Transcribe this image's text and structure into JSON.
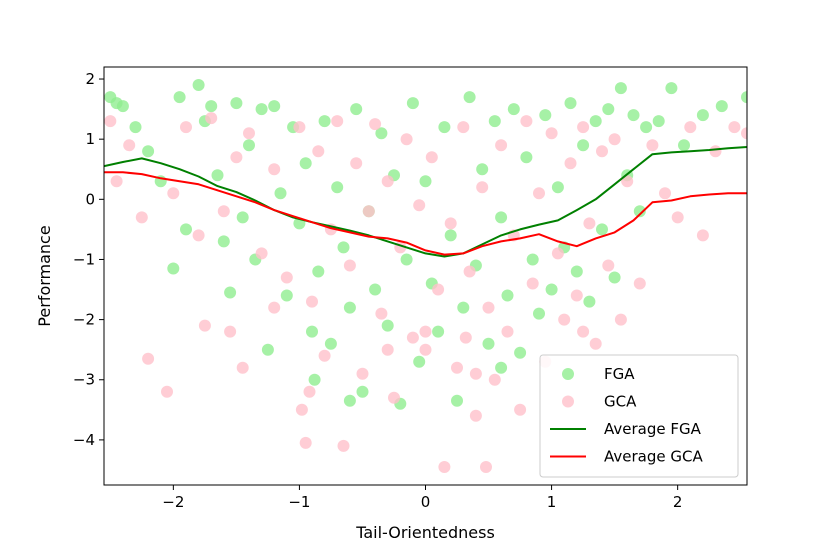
{
  "chart_data": {
    "type": "scatter",
    "title": "",
    "xlabel": "Tail-Orientedness",
    "ylabel": "Performance",
    "xlim": [
      -2.55,
      2.55
    ],
    "ylim": [
      -4.75,
      2.2
    ],
    "xticks": [
      -2,
      -1,
      0,
      1,
      2
    ],
    "yticks": [
      -4,
      -3,
      -2,
      -1,
      0,
      1,
      2
    ],
    "tick_minus": "−",
    "grid": false,
    "legend_position": "lower-right",
    "legend": [
      "FGA",
      "GCA",
      "Average FGA",
      "Average GCA"
    ],
    "colors": {
      "fga": "#90ee90",
      "gca": "#ffc0cb",
      "avg_fga": "#008000",
      "avg_gca": "#ff0000"
    },
    "series": [
      {
        "name": "FGA",
        "kind": "scatter",
        "points": [
          [
            -2.5,
            1.7
          ],
          [
            -2.45,
            1.6
          ],
          [
            -2.4,
            1.55
          ],
          [
            -2.3,
            1.2
          ],
          [
            -2.2,
            0.8
          ],
          [
            -2.1,
            0.3
          ],
          [
            -2.0,
            -1.15
          ],
          [
            -1.95,
            1.7
          ],
          [
            -1.9,
            -0.5
          ],
          [
            -1.8,
            1.9
          ],
          [
            -1.75,
            1.3
          ],
          [
            -1.7,
            1.55
          ],
          [
            -1.65,
            0.4
          ],
          [
            -1.6,
            -0.7
          ],
          [
            -1.55,
            -1.55
          ],
          [
            -1.5,
            1.6
          ],
          [
            -1.45,
            -0.3
          ],
          [
            -1.4,
            0.9
          ],
          [
            -1.35,
            -1.0
          ],
          [
            -1.3,
            1.5
          ],
          [
            -1.25,
            -2.5
          ],
          [
            -1.2,
            1.55
          ],
          [
            -1.15,
            0.1
          ],
          [
            -1.1,
            -1.6
          ],
          [
            -1.05,
            1.2
          ],
          [
            -1.0,
            -0.4
          ],
          [
            -0.95,
            0.6
          ],
          [
            -0.9,
            -2.2
          ],
          [
            -0.88,
            -3.0
          ],
          [
            -0.85,
            -1.2
          ],
          [
            -0.8,
            1.3
          ],
          [
            -0.75,
            -2.4
          ],
          [
            -0.7,
            0.2
          ],
          [
            -0.65,
            -0.8
          ],
          [
            -0.6,
            -1.8
          ],
          [
            -0.55,
            1.5
          ],
          [
            -0.5,
            -3.2
          ],
          [
            -0.45,
            -0.2
          ],
          [
            -0.4,
            -1.5
          ],
          [
            -0.35,
            1.1
          ],
          [
            -0.3,
            -2.1
          ],
          [
            -0.25,
            0.4
          ],
          [
            -0.2,
            -3.4
          ],
          [
            -0.15,
            -1.0
          ],
          [
            -0.1,
            1.6
          ],
          [
            -0.05,
            -2.7
          ],
          [
            0.0,
            0.3
          ],
          [
            0.05,
            -1.4
          ],
          [
            0.1,
            -2.2
          ],
          [
            0.15,
            1.2
          ],
          [
            0.2,
            -0.6
          ],
          [
            0.25,
            -3.35
          ],
          [
            0.3,
            -1.8
          ],
          [
            0.35,
            1.7
          ],
          [
            0.4,
            -1.1
          ],
          [
            0.45,
            0.5
          ],
          [
            0.5,
            -2.4
          ],
          [
            0.55,
            1.3
          ],
          [
            0.6,
            -0.3
          ],
          [
            0.65,
            -1.6
          ],
          [
            0.7,
            1.5
          ],
          [
            0.75,
            -2.55
          ],
          [
            0.8,
            0.7
          ],
          [
            0.85,
            -1.0
          ],
          [
            0.9,
            -1.9
          ],
          [
            0.95,
            1.4
          ],
          [
            1.0,
            -1.5
          ],
          [
            1.05,
            0.2
          ],
          [
            1.1,
            -0.8
          ],
          [
            1.15,
            1.6
          ],
          [
            1.2,
            -1.2
          ],
          [
            1.25,
            0.9
          ],
          [
            1.3,
            -1.7
          ],
          [
            1.35,
            1.3
          ],
          [
            1.4,
            -0.5
          ],
          [
            1.45,
            1.5
          ],
          [
            1.5,
            -1.3
          ],
          [
            1.55,
            1.85
          ],
          [
            1.6,
            0.4
          ],
          [
            1.65,
            1.4
          ],
          [
            1.7,
            -0.2
          ],
          [
            1.75,
            1.2
          ],
          [
            1.85,
            1.3
          ],
          [
            1.95,
            1.85
          ],
          [
            2.05,
            0.9
          ],
          [
            2.2,
            1.4
          ],
          [
            2.35,
            1.55
          ],
          [
            2.55,
            1.7
          ],
          [
            -0.6,
            -3.35
          ],
          [
            0.6,
            -2.8
          ]
        ]
      },
      {
        "name": "GCA",
        "kind": "scatter",
        "points": [
          [
            -2.5,
            1.3
          ],
          [
            -2.45,
            0.3
          ],
          [
            -2.35,
            0.9
          ],
          [
            -2.25,
            -0.3
          ],
          [
            -2.2,
            -2.65
          ],
          [
            -2.05,
            -3.2
          ],
          [
            -2.0,
            0.1
          ],
          [
            -1.9,
            1.2
          ],
          [
            -1.8,
            -0.6
          ],
          [
            -1.75,
            -2.1
          ],
          [
            -1.7,
            1.35
          ],
          [
            -1.6,
            -0.2
          ],
          [
            -1.55,
            -2.2
          ],
          [
            -1.5,
            0.7
          ],
          [
            -1.45,
            -2.8
          ],
          [
            -1.4,
            1.1
          ],
          [
            -1.3,
            -0.9
          ],
          [
            -1.2,
            0.5
          ],
          [
            -1.1,
            -1.3
          ],
          [
            -1.0,
            1.2
          ],
          [
            -0.98,
            -3.5
          ],
          [
            -0.95,
            -4.05
          ],
          [
            -0.9,
            -1.7
          ],
          [
            -0.85,
            0.8
          ],
          [
            -0.8,
            -2.6
          ],
          [
            -0.75,
            -0.5
          ],
          [
            -0.7,
            1.3
          ],
          [
            -0.65,
            -4.1
          ],
          [
            -0.6,
            -1.1
          ],
          [
            -0.55,
            0.6
          ],
          [
            -0.5,
            -2.9
          ],
          [
            -0.45,
            -0.2
          ],
          [
            -0.4,
            1.25
          ],
          [
            -0.35,
            -1.9
          ],
          [
            -0.3,
            0.3
          ],
          [
            -0.25,
            -3.3
          ],
          [
            -0.2,
            -0.8
          ],
          [
            -0.15,
            1.0
          ],
          [
            -0.1,
            -2.3
          ],
          [
            -0.05,
            -0.1
          ],
          [
            0.0,
            -2.5
          ],
          [
            0.05,
            0.7
          ],
          [
            0.1,
            -1.5
          ],
          [
            0.15,
            -4.45
          ],
          [
            0.2,
            -0.4
          ],
          [
            0.25,
            -2.8
          ],
          [
            0.3,
            1.2
          ],
          [
            0.35,
            -1.2
          ],
          [
            0.4,
            -3.6
          ],
          [
            0.45,
            0.2
          ],
          [
            0.48,
            -4.45
          ],
          [
            0.5,
            -1.8
          ],
          [
            0.55,
            -3.0
          ],
          [
            0.6,
            0.9
          ],
          [
            0.65,
            -2.2
          ],
          [
            0.7,
            -0.6
          ],
          [
            0.75,
            -3.5
          ],
          [
            0.8,
            1.3
          ],
          [
            0.85,
            -1.4
          ],
          [
            0.9,
            0.1
          ],
          [
            0.95,
            -2.7
          ],
          [
            1.0,
            1.1
          ],
          [
            1.05,
            -0.9
          ],
          [
            1.1,
            -2.0
          ],
          [
            1.15,
            0.6
          ],
          [
            1.2,
            -1.6
          ],
          [
            1.25,
            1.2
          ],
          [
            1.3,
            -0.4
          ],
          [
            1.35,
            -2.4
          ],
          [
            1.4,
            0.8
          ],
          [
            1.45,
            -1.1
          ],
          [
            1.5,
            1.0
          ],
          [
            1.55,
            -2.0
          ],
          [
            1.6,
            0.3
          ],
          [
            1.7,
            -1.4
          ],
          [
            1.8,
            0.9
          ],
          [
            1.9,
            0.1
          ],
          [
            2.0,
            -0.3
          ],
          [
            2.1,
            1.2
          ],
          [
            2.2,
            -0.6
          ],
          [
            2.3,
            0.8
          ],
          [
            2.45,
            1.2
          ],
          [
            2.55,
            1.1
          ],
          [
            -0.92,
            -3.2
          ],
          [
            0.32,
            -2.3
          ],
          [
            -1.2,
            -1.8
          ],
          [
            1.25,
            -2.2
          ],
          [
            0.0,
            -2.2
          ],
          [
            -0.3,
            -2.5
          ],
          [
            0.4,
            -2.9
          ]
        ]
      },
      {
        "name": "Average FGA",
        "kind": "line",
        "x": [
          -2.55,
          -2.4,
          -2.25,
          -2.1,
          -1.95,
          -1.8,
          -1.65,
          -1.5,
          -1.35,
          -1.2,
          -1.05,
          -0.9,
          -0.75,
          -0.6,
          -0.45,
          -0.3,
          -0.15,
          0.0,
          0.15,
          0.3,
          0.45,
          0.6,
          0.75,
          0.9,
          1.05,
          1.2,
          1.35,
          1.5,
          1.65,
          1.8,
          1.95,
          2.1,
          2.25,
          2.4,
          2.55
        ],
        "y": [
          0.55,
          0.62,
          0.68,
          0.6,
          0.5,
          0.38,
          0.22,
          0.12,
          -0.02,
          -0.18,
          -0.3,
          -0.38,
          -0.45,
          -0.52,
          -0.6,
          -0.7,
          -0.8,
          -0.9,
          -0.95,
          -0.9,
          -0.75,
          -0.6,
          -0.5,
          -0.42,
          -0.35,
          -0.18,
          0.0,
          0.25,
          0.5,
          0.75,
          0.78,
          0.8,
          0.82,
          0.85,
          0.87
        ]
      },
      {
        "name": "Average GCA",
        "kind": "line",
        "x": [
          -2.55,
          -2.4,
          -2.25,
          -2.1,
          -1.95,
          -1.8,
          -1.65,
          -1.5,
          -1.35,
          -1.2,
          -1.05,
          -0.9,
          -0.75,
          -0.6,
          -0.45,
          -0.3,
          -0.15,
          0.0,
          0.15,
          0.3,
          0.45,
          0.6,
          0.75,
          0.9,
          1.05,
          1.2,
          1.35,
          1.5,
          1.65,
          1.8,
          1.95,
          2.1,
          2.25,
          2.4,
          2.55
        ],
        "y": [
          0.45,
          0.45,
          0.42,
          0.35,
          0.3,
          0.25,
          0.15,
          0.05,
          -0.05,
          -0.18,
          -0.28,
          -0.38,
          -0.48,
          -0.55,
          -0.62,
          -0.65,
          -0.72,
          -0.85,
          -0.92,
          -0.9,
          -0.78,
          -0.7,
          -0.65,
          -0.58,
          -0.7,
          -0.78,
          -0.65,
          -0.55,
          -0.35,
          -0.05,
          -0.02,
          0.05,
          0.08,
          0.1,
          0.1
        ]
      }
    ]
  }
}
